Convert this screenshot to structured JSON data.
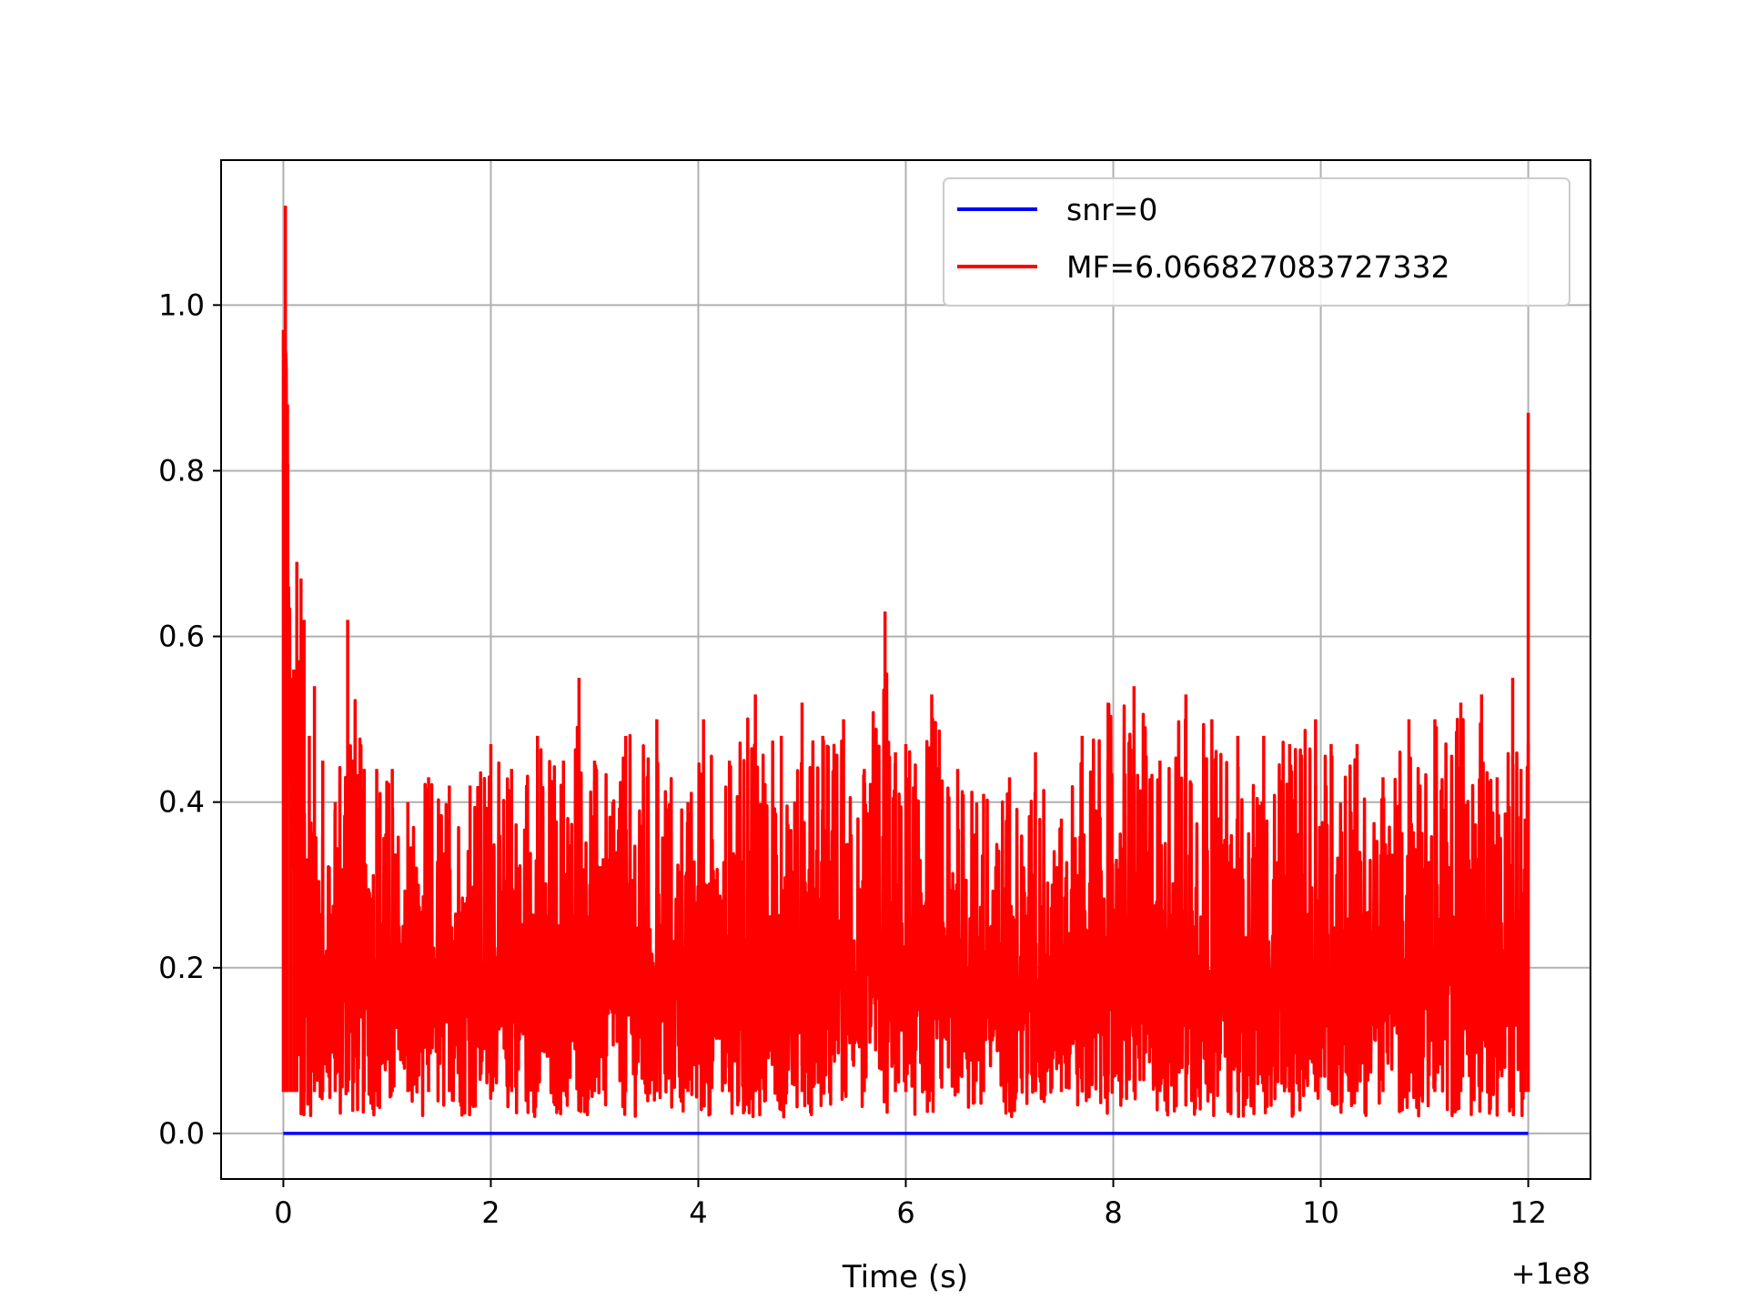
{
  "chart_data": {
    "type": "line",
    "title": "",
    "xlabel": "Time (s)",
    "ylabel": "",
    "x_offset_label": "+1e8",
    "xlim": [
      -0.6,
      12.6
    ],
    "ylim": [
      -0.055,
      1.175
    ],
    "xticks": [
      0,
      2,
      4,
      6,
      8,
      10,
      12
    ],
    "xtick_labels": [
      "0",
      "2",
      "4",
      "6",
      "8",
      "10",
      "12"
    ],
    "yticks": [
      0.0,
      0.2,
      0.4,
      0.6,
      0.8,
      1.0
    ],
    "ytick_labels": [
      "0.0",
      "0.2",
      "0.4",
      "0.6",
      "0.8",
      "1.0"
    ],
    "grid": true,
    "legend_position": "top-right",
    "series": [
      {
        "name": "snr=0",
        "color": "#0000ff",
        "x": [
          0,
          12
        ],
        "y": [
          0,
          0
        ]
      },
      {
        "name": "MF=6.066827083727332",
        "color": "#ff0000",
        "x": [
          0.0,
          0.02,
          0.04,
          0.07,
          0.1,
          0.13,
          0.17,
          0.2,
          0.25,
          0.3,
          0.38,
          0.5,
          0.62,
          0.78,
          0.9,
          1.05,
          1.2,
          1.4,
          1.6,
          1.8,
          2.0,
          2.2,
          2.45,
          2.7,
          2.85,
          3.0,
          3.3,
          3.6,
          3.9,
          4.05,
          4.3,
          4.55,
          4.8,
          5.0,
          5.2,
          5.4,
          5.6,
          5.8,
          5.9,
          6.0,
          6.25,
          6.5,
          6.75,
          7.0,
          7.25,
          7.5,
          7.7,
          7.95,
          8.2,
          8.45,
          8.7,
          8.95,
          9.2,
          9.45,
          9.7,
          9.95,
          10.1,
          10.35,
          10.6,
          10.85,
          11.1,
          11.35,
          11.55,
          11.7,
          11.85,
          11.93,
          11.97,
          12.0
        ],
        "y": [
          0.97,
          1.12,
          0.88,
          0.55,
          0.56,
          0.69,
          0.67,
          0.62,
          0.48,
          0.54,
          0.45,
          0.4,
          0.62,
          0.44,
          0.44,
          0.44,
          0.4,
          0.43,
          0.42,
          0.42,
          0.47,
          0.44,
          0.48,
          0.45,
          0.55,
          0.45,
          0.48,
          0.5,
          0.4,
          0.5,
          0.45,
          0.53,
          0.48,
          0.52,
          0.48,
          0.5,
          0.44,
          0.63,
          0.46,
          0.47,
          0.53,
          0.44,
          0.41,
          0.43,
          0.46,
          0.38,
          0.48,
          0.52,
          0.54,
          0.45,
          0.53,
          0.5,
          0.48,
          0.48,
          0.47,
          0.5,
          0.47,
          0.47,
          0.43,
          0.5,
          0.5,
          0.52,
          0.53,
          0.43,
          0.55,
          0.44,
          0.38,
          0.87
        ]
      }
    ]
  }
}
